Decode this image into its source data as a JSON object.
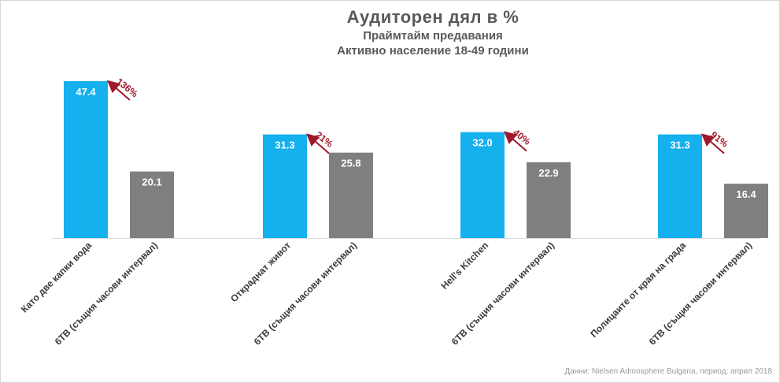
{
  "title": "Аудиторен дял в %",
  "subtitle": "Праймтайм предавания",
  "subtitle2": "Активно население 18-49 години",
  "source": "Данни: Nielsen Admosphere Bulgaria, период: април 2018",
  "colors": {
    "primary": "#15b0ee",
    "comparison": "#7f7f7f",
    "arrow": "#a0182a"
  },
  "chart_data": {
    "type": "bar",
    "title": "Аудиторен дял в %",
    "subtitle": "Праймтайм предавания / Активно население 18-49 години",
    "categories": [
      "Като две капки вода",
      "6ТВ (същия часови интервал)",
      "Откраднат живот",
      "6ТВ (същия часови интервал)",
      "Hell's Kitchen",
      "6ТВ (същия часови интервал)",
      "Полицаите от края на града",
      "6ТВ (същия часови интервал)"
    ],
    "values": [
      47.4,
      20.1,
      31.3,
      25.8,
      32.0,
      22.9,
      31.3,
      16.4
    ],
    "value_labels": [
      "47.4",
      "20.1",
      "31.3",
      "25.8",
      "32.0",
      "22.9",
      "31.3",
      "16.4"
    ],
    "groups": [
      {
        "show": "Като две капки вода",
        "value": 47.4,
        "comparison": 20.1,
        "diff": "136%"
      },
      {
        "show": "Откраднат живот",
        "value": 31.3,
        "comparison": 25.8,
        "diff": "21%"
      },
      {
        "show": "Hell's Kitchen",
        "value": 32.0,
        "comparison": 22.9,
        "diff": "40%"
      },
      {
        "show": "Полицаите от края на града",
        "value": 31.3,
        "comparison": 16.4,
        "diff": "91%"
      }
    ],
    "ylim": [
      0,
      47.4
    ],
    "grid": false,
    "legend": "none",
    "xlabel": "",
    "ylabel": ""
  }
}
